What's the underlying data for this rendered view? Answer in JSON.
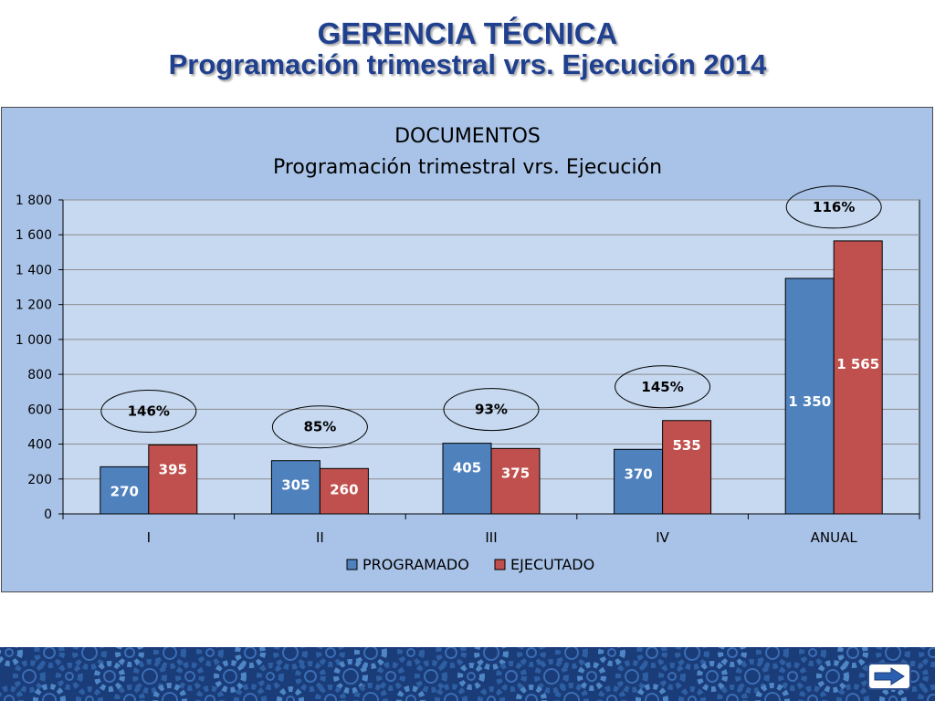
{
  "slide": {
    "title_line1": "GERENCIA TÉCNICA",
    "title_line2": "Programación trimestral vrs. Ejecución 2014"
  },
  "colors": {
    "programado": "#4f81bd",
    "ejecutado": "#c0504d",
    "plot_area": "#c6d9f1",
    "chart_area": "#a9c3e8",
    "title": "#1f3f8f",
    "footer": "#1a3c78"
  },
  "icons": {
    "next": "right-arrow-icon",
    "footer": "gear-pattern"
  },
  "chart_data": {
    "type": "bar",
    "title": "DOCUMENTOS",
    "subtitle": "Programación trimestral vrs. Ejecución",
    "categories": [
      "I",
      "II",
      "III",
      "IV",
      "ANUAL"
    ],
    "series": [
      {
        "name": "PROGRAMADO",
        "values": [
          270,
          305,
          405,
          370,
          1350
        ],
        "labels": [
          "270",
          "305",
          "405",
          "370",
          "1 350"
        ]
      },
      {
        "name": "EJECUTADO",
        "values": [
          395,
          260,
          375,
          535,
          1565
        ],
        "labels": [
          "395",
          "260",
          "375",
          "535",
          "1 565"
        ]
      }
    ],
    "percentages": [
      "146%",
      "85%",
      "93%",
      "145%",
      "116%"
    ],
    "ylim": [
      0,
      1800
    ],
    "yticks": [
      0,
      200,
      400,
      600,
      800,
      1000,
      1200,
      1400,
      1600,
      1800
    ],
    "ytick_labels": [
      "0",
      "200",
      "400",
      "600",
      "800",
      "1 000",
      "1 200",
      "1 400",
      "1 600",
      "1 800"
    ],
    "grid": true,
    "legend": "bottom"
  }
}
